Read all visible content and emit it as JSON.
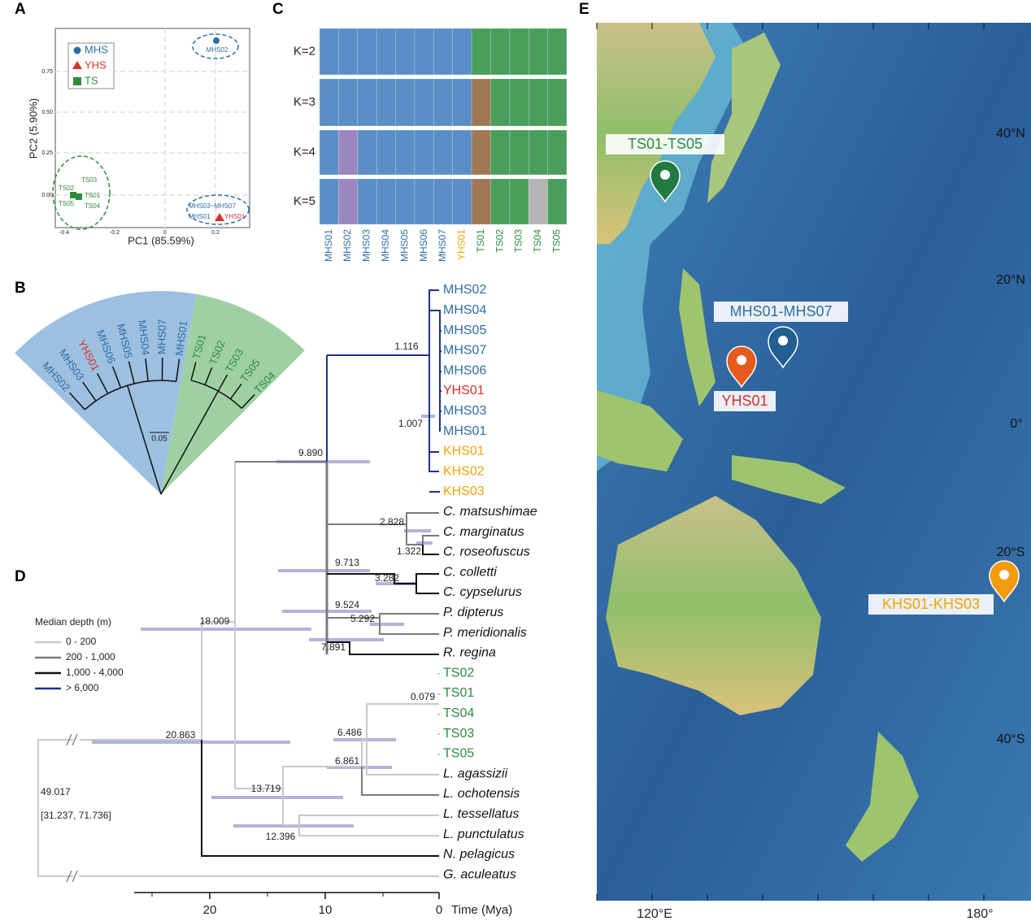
{
  "panels": {
    "A": {
      "label": "A",
      "x_label": "PC1 (85.59%)",
      "y_label": "PC2 (5.90%)",
      "x_ticks": [
        "-0.4",
        "-0.2",
        "0",
        "0.2"
      ],
      "y_ticks": [
        "0.00",
        "0.25",
        "0.50",
        "0.75"
      ],
      "legend": [
        "MHS",
        "YHS",
        "TS"
      ],
      "point_labels": [
        "MHS02",
        "TS03",
        "TS02",
        "TS01",
        "TS05",
        "TS04",
        "MHS03~MHS07",
        "MHS01",
        "YHS01"
      ]
    },
    "B": {
      "label": "B",
      "tips": [
        "MHS02",
        "MHS03",
        "YHS01",
        "MHS06",
        "MHS05",
        "MHS04",
        "MHS07",
        "MHS01",
        "TS01",
        "TS02",
        "TS03",
        "TS05",
        "TS04"
      ],
      "scale": "0.05"
    },
    "C": {
      "label": "C",
      "rows": [
        "K=2",
        "K=3",
        "K=4",
        "K=5"
      ],
      "columns": [
        "MHS01",
        "MHS02",
        "MHS03",
        "MHS04",
        "MHS05",
        "MHS06",
        "MHS07",
        "YHS01",
        "TS01",
        "TS02",
        "TS03",
        "TS04",
        "TS05"
      ]
    },
    "D": {
      "label": "D",
      "legend_title": "Median depth (m)",
      "legend": [
        "0 - 200",
        "200 - 1,000",
        "1,000 - 4,000",
        "> 6,000"
      ],
      "tips": [
        "MHS02",
        "MHS04",
        "MHS05",
        "MHS07",
        "MHS06",
        "YHS01",
        "MHS03",
        "MHS01",
        "KHS01",
        "KHS02",
        "KHS03",
        "C. matsushimae",
        "C. marginatus",
        "C. roseofuscus",
        "C. colletti",
        "C. cypselurus",
        "P. dipterus",
        "P. meridionalis",
        "R. regina",
        "TS02",
        "TS01",
        "TS04",
        "TS03",
        "TS05",
        "L. agassizii",
        "L. ochotensis",
        "L. tessellatus",
        "L. punctulatus",
        "N. pelagicus",
        "G. aculeatus"
      ],
      "node_ages": [
        "1.116",
        "1.007",
        "9.890",
        "2.828",
        "1.322",
        "9.713",
        "3.282",
        "9.524",
        "5.292",
        "7.891",
        "18.009",
        "0.079",
        "6.486",
        "6.861",
        "20.863",
        "13.719",
        "12.396",
        "49.017",
        "[31.237, 71.736]"
      ],
      "axis_ticks": [
        "20",
        "10",
        "0"
      ],
      "axis_label": "Time (Mya)"
    },
    "E": {
      "label": "E",
      "sites": [
        "TS01-TS05",
        "MHS01-MHS07",
        "YHS01",
        "KHS01-KHS03"
      ],
      "latitudes": [
        "40°N",
        "20°N",
        "0°",
        "20°S",
        "40°S"
      ],
      "longitudes": [
        "120°E",
        "180°"
      ]
    }
  }
}
